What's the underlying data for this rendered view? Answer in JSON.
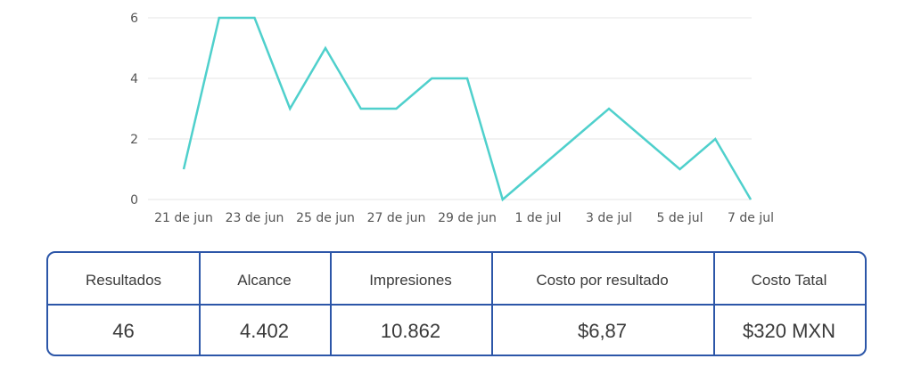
{
  "chart_data": {
    "type": "line",
    "x_labels": [
      "21 de jun",
      "23 de jun",
      "25 de jun",
      "27 de jun",
      "29 de jun",
      "1 de jul",
      "3 de jul",
      "5 de jul",
      "7 de jul"
    ],
    "series": [
      {
        "values": [
          1,
          6,
          6,
          3,
          5,
          3,
          3,
          4,
          4,
          0,
          1,
          2,
          3,
          2,
          1,
          2,
          0
        ],
        "color": "#4fd0cc"
      }
    ],
    "ylim": [
      0,
      6
    ],
    "yticks": [
      "0",
      "2",
      "4",
      "6"
    ],
    "grid": true,
    "xlabel": "",
    "ylabel": "",
    "title": ""
  },
  "stats": {
    "headers": [
      "Resultados",
      "Alcance",
      "Impresiones",
      "Costo por resultado",
      "Costo Tatal"
    ],
    "values": [
      "46",
      "4.402",
      "10.862",
      "$6,87",
      "$320 MXN"
    ],
    "border_color": "#2c56a8"
  }
}
